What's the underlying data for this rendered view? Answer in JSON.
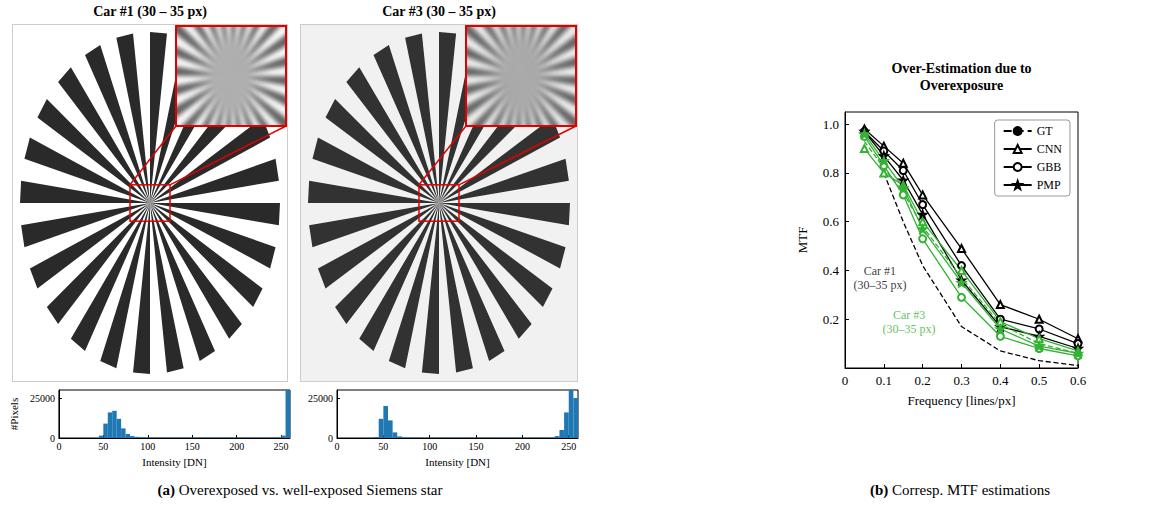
{
  "chart_data": [
    {
      "type": "histogram",
      "xlabel": "Intensity [DN]",
      "ylabel": "#Pixels",
      "color": "#1f77b4",
      "bins": [
        0,
        5,
        10,
        15,
        20,
        25,
        30,
        35,
        40,
        45,
        50,
        55,
        60,
        65,
        70,
        75,
        80,
        85,
        90,
        95,
        100,
        105,
        110,
        115,
        120,
        125,
        130,
        135,
        140,
        145,
        150,
        155,
        160,
        165,
        170,
        175,
        180,
        185,
        190,
        195,
        200,
        205,
        210,
        215,
        220,
        225,
        230,
        235,
        240,
        245,
        250,
        255,
        260
      ],
      "values": [
        0,
        0,
        0,
        0,
        0,
        0,
        0,
        0,
        0,
        1500,
        9000,
        16000,
        17000,
        12000,
        6000,
        2500,
        1200,
        700,
        500,
        400,
        200,
        200,
        200,
        200,
        200,
        200,
        200,
        200,
        200,
        200,
        200,
        200,
        200,
        200,
        200,
        200,
        200,
        200,
        200,
        200,
        200,
        200,
        200,
        200,
        200,
        200,
        200,
        200,
        200,
        300,
        1500,
        30000
      ],
      "xlim": [
        0,
        260
      ],
      "ylim": [
        0,
        30000
      ],
      "xticks": [
        0,
        50,
        100,
        150,
        200,
        250
      ],
      "yticks": [
        0,
        25000
      ]
    },
    {
      "type": "histogram",
      "xlabel": "Intensity [DN]",
      "color": "#1f77b4",
      "bins": [
        0,
        5,
        10,
        15,
        20,
        25,
        30,
        35,
        40,
        45,
        50,
        55,
        60,
        65,
        70,
        75,
        80,
        85,
        90,
        95,
        100,
        105,
        110,
        115,
        120,
        125,
        130,
        135,
        140,
        145,
        150,
        155,
        160,
        165,
        170,
        175,
        180,
        185,
        190,
        195,
        200,
        205,
        210,
        215,
        220,
        225,
        230,
        235,
        240,
        245,
        250,
        255,
        260
      ],
      "values": [
        0,
        0,
        0,
        0,
        0,
        0,
        0,
        0,
        500,
        12000,
        20000,
        11000,
        3500,
        1000,
        400,
        300,
        150,
        150,
        150,
        150,
        150,
        150,
        150,
        150,
        150,
        150,
        150,
        150,
        150,
        150,
        150,
        150,
        150,
        150,
        150,
        150,
        150,
        150,
        150,
        150,
        150,
        150,
        150,
        150,
        150,
        150,
        300,
        1200,
        5000,
        16000,
        30000,
        25000
      ],
      "xlim": [
        0,
        260
      ],
      "ylim": [
        0,
        30000
      ],
      "xticks": [
        0,
        50,
        100,
        150,
        200,
        250
      ],
      "yticks": [
        0,
        25000
      ]
    },
    {
      "type": "line",
      "title": "Over-Estimation due to Overexposure",
      "xlabel": "Frequency [lines/px]",
      "ylabel": "MTF",
      "x": [
        0.05,
        0.1,
        0.15,
        0.2,
        0.3,
        0.4,
        0.5,
        0.6
      ],
      "series": [
        {
          "name": "GT",
          "color": "#000000",
          "marker": "none",
          "line_style": "dashed",
          "values": [
            null,
            0.8,
            0.6,
            0.42,
            0.17,
            0.07,
            0.03,
            0.01
          ]
        },
        {
          "name": "CNN",
          "color": "#000000",
          "marker": "triangle",
          "line_style": "solid",
          "values": [
            0.98,
            0.91,
            0.84,
            0.71,
            0.49,
            0.26,
            0.2,
            0.12
          ]
        },
        {
          "name": "GBB",
          "color": "#000000",
          "marker": "circle",
          "line_style": "solid",
          "values": [
            0.97,
            0.89,
            0.81,
            0.67,
            0.42,
            0.2,
            0.16,
            0.1
          ]
        },
        {
          "name": "PMP",
          "color": "#000000",
          "marker": "star",
          "line_style": "solid",
          "values": [
            0.97,
            0.87,
            0.77,
            0.63,
            0.36,
            0.17,
            0.13,
            0.08
          ]
        },
        {
          "name": "GT",
          "color": "#33b233",
          "marker": "none",
          "line_style": "dashed",
          "values": [
            0.93,
            0.82,
            0.72,
            0.58,
            0.37,
            0.18,
            0.1,
            0.06
          ]
        },
        {
          "name": "CNN",
          "color": "#33b233",
          "marker": "triangle",
          "line_style": "solid",
          "values": [
            0.9,
            0.8,
            0.75,
            0.6,
            0.4,
            0.19,
            0.12,
            0.07
          ]
        },
        {
          "name": "GBB",
          "color": "#33b233",
          "marker": "circle",
          "line_style": "solid",
          "values": [
            0.95,
            0.83,
            0.71,
            0.53,
            0.29,
            0.13,
            0.08,
            0.05
          ]
        },
        {
          "name": "PMP",
          "color": "#33b233",
          "marker": "star",
          "line_style": "solid",
          "values": [
            0.96,
            0.85,
            0.74,
            0.57,
            0.35,
            0.16,
            0.09,
            0.06
          ]
        }
      ],
      "xlim": [
        0,
        0.6
      ],
      "ylim": [
        0,
        1.05
      ],
      "xticks": [
        0,
        0.1,
        0.2,
        0.3,
        0.4,
        0.5,
        0.6
      ],
      "yticks": [
        0.2,
        0.4,
        0.6,
        0.8,
        {
          "value": 1,
          "label": "1.0"
        }
      ],
      "legend": "upper right",
      "annotations": [
        {
          "text": "Car #1\n(30–35 px)",
          "x": 0.09,
          "y": 0.37,
          "color": "#000000"
        },
        {
          "text": "Car #3\n(30–35 px)",
          "x": 0.165,
          "y": 0.19,
          "color": "#33b233"
        }
      ]
    }
  ],
  "panels": [
    {
      "title": "Car #1 (30 – 35 px)"
    },
    {
      "title": "Car #3 (30 – 35 px)"
    }
  ],
  "captions": [
    {
      "label": "(a)",
      "text": "Overexposed vs. well-exposed Siemens star"
    },
    {
      "label": "(b)",
      "text": "Corresp. MTF estimations"
    }
  ]
}
